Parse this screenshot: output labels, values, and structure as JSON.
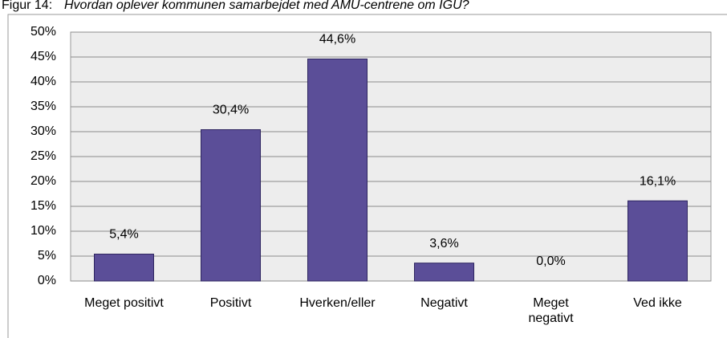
{
  "chart_data": {
    "type": "bar",
    "figure_label": "Figur 14:",
    "title": "Hvordan oplever kommunen samarbejdet med AMU-centrene om IGU?",
    "categories": [
      "Meget positivt",
      "Positivt",
      "Hverken/eller",
      "Negativt",
      "Meget\nnegativt",
      "Ved ikke"
    ],
    "values": [
      5.4,
      30.4,
      44.6,
      3.6,
      0.0,
      16.1
    ],
    "value_labels": [
      "5,4%",
      "30,4%",
      "44,6%",
      "3,6%",
      "0,0%",
      "16,1%"
    ],
    "color": "#5b4e98",
    "ylim": [
      0,
      50
    ],
    "yticks": [
      {
        "value": 0,
        "label": "0%"
      },
      {
        "value": 5,
        "label": "5%"
      },
      {
        "value": 10,
        "label": "10%"
      },
      {
        "value": 15,
        "label": "15%"
      },
      {
        "value": 20,
        "label": "20%"
      },
      {
        "value": 25,
        "label": "25%"
      },
      {
        "value": 30,
        "label": "30%"
      },
      {
        "value": 35,
        "label": "35%"
      },
      {
        "value": 40,
        "label": "40%"
      },
      {
        "value": 45,
        "label": "45%"
      },
      {
        "value": 50,
        "label": "50%"
      }
    ],
    "grid": true
  }
}
